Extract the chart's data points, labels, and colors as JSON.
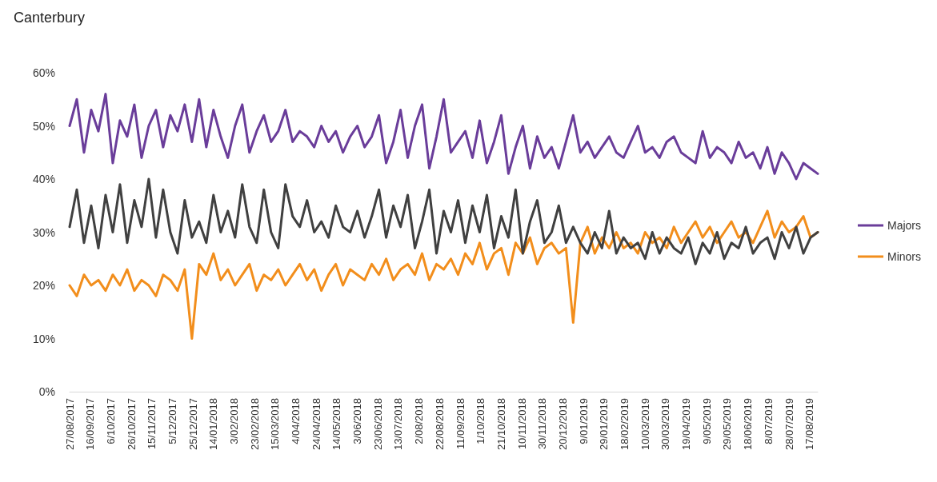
{
  "chart_data": {
    "type": "line",
    "title": "Canterbury",
    "legend": "right",
    "grid": false,
    "marker": "none",
    "line_style": "solid",
    "x": [
      "2017-08-27",
      "2017-09-03",
      "2017-09-10",
      "2017-09-17",
      "2017-09-24",
      "2017-10-01",
      "2017-10-08",
      "2017-10-15",
      "2017-10-22",
      "2017-10-29",
      "2017-11-05",
      "2017-11-12",
      "2017-11-19",
      "2017-11-26",
      "2017-12-03",
      "2017-12-10",
      "2017-12-17",
      "2017-12-24",
      "2017-12-31",
      "2018-01-07",
      "2018-01-14",
      "2018-01-21",
      "2018-01-28",
      "2018-02-04",
      "2018-02-11",
      "2018-02-18",
      "2018-02-25",
      "2018-03-04",
      "2018-03-11",
      "2018-03-18",
      "2018-03-25",
      "2018-04-01",
      "2018-04-08",
      "2018-04-15",
      "2018-04-22",
      "2018-04-29",
      "2018-05-06",
      "2018-05-13",
      "2018-05-20",
      "2018-05-27",
      "2018-06-03",
      "2018-06-10",
      "2018-06-17",
      "2018-06-24",
      "2018-07-01",
      "2018-07-08",
      "2018-07-15",
      "2018-07-22",
      "2018-07-29",
      "2018-08-05",
      "2018-08-12",
      "2018-08-19",
      "2018-08-26",
      "2018-09-02",
      "2018-09-09",
      "2018-09-16",
      "2018-09-23",
      "2018-09-30",
      "2018-10-07",
      "2018-10-14",
      "2018-10-21",
      "2018-10-28",
      "2018-11-04",
      "2018-11-11",
      "2018-11-18",
      "2018-11-25",
      "2018-12-02",
      "2018-12-09",
      "2018-12-16",
      "2018-12-23",
      "2018-12-30",
      "2019-01-06",
      "2019-01-13",
      "2019-01-20",
      "2019-01-27",
      "2019-02-03",
      "2019-02-10",
      "2019-02-17",
      "2019-02-24",
      "2019-03-03",
      "2019-03-10",
      "2019-03-17",
      "2019-03-24",
      "2019-03-31",
      "2019-04-07",
      "2019-04-14",
      "2019-04-21",
      "2019-04-28",
      "2019-05-05",
      "2019-05-12",
      "2019-05-19",
      "2019-05-26",
      "2019-06-02",
      "2019-06-09",
      "2019-06-16",
      "2019-06-23",
      "2019-06-30",
      "2019-07-07",
      "2019-07-14",
      "2019-07-21",
      "2019-07-28",
      "2019-08-04",
      "2019-08-11",
      "2019-08-18",
      "2019-08-25"
    ],
    "xlim": [
      "2017-08-27",
      "2019-08-25"
    ],
    "xticks": [
      {
        "value": "2017-08-27",
        "label": "27/08/2017"
      },
      {
        "value": "2017-09-16",
        "label": "16/09/2017"
      },
      {
        "value": "2017-10-06",
        "label": "6/10/2017"
      },
      {
        "value": "2017-10-26",
        "label": "26/10/2017"
      },
      {
        "value": "2017-11-15",
        "label": "15/11/2017"
      },
      {
        "value": "2017-12-05",
        "label": "5/12/2017"
      },
      {
        "value": "2017-12-25",
        "label": "25/12/2017"
      },
      {
        "value": "2018-01-14",
        "label": "14/01/2018"
      },
      {
        "value": "2018-02-03",
        "label": "3/02/2018"
      },
      {
        "value": "2018-02-23",
        "label": "23/02/2018"
      },
      {
        "value": "2018-03-15",
        "label": "15/03/2018"
      },
      {
        "value": "2018-04-04",
        "label": "4/04/2018"
      },
      {
        "value": "2018-04-24",
        "label": "24/04/2018"
      },
      {
        "value": "2018-05-14",
        "label": "14/05/2018"
      },
      {
        "value": "2018-06-03",
        "label": "3/06/2018"
      },
      {
        "value": "2018-06-23",
        "label": "23/06/2018"
      },
      {
        "value": "2018-07-13",
        "label": "13/07/2018"
      },
      {
        "value": "2018-08-02",
        "label": "2/08/2018"
      },
      {
        "value": "2018-08-22",
        "label": "22/08/2018"
      },
      {
        "value": "2018-09-11",
        "label": "11/09/2018"
      },
      {
        "value": "2018-10-01",
        "label": "1/10/2018"
      },
      {
        "value": "2018-10-21",
        "label": "21/10/2018"
      },
      {
        "value": "2018-11-10",
        "label": "10/11/2018"
      },
      {
        "value": "2018-11-30",
        "label": "30/11/2018"
      },
      {
        "value": "2018-12-20",
        "label": "20/12/2018"
      },
      {
        "value": "2019-01-09",
        "label": "9/01/2019"
      },
      {
        "value": "2019-01-29",
        "label": "29/01/2019"
      },
      {
        "value": "2019-02-18",
        "label": "18/02/2019"
      },
      {
        "value": "2019-03-10",
        "label": "10/03/2019"
      },
      {
        "value": "2019-03-30",
        "label": "30/03/2019"
      },
      {
        "value": "2019-04-19",
        "label": "19/04/2019"
      },
      {
        "value": "2019-05-09",
        "label": "9/05/2019"
      },
      {
        "value": "2019-05-29",
        "label": "29/05/2019"
      },
      {
        "value": "2019-06-18",
        "label": "18/06/2019"
      },
      {
        "value": "2019-07-08",
        "label": "8/07/2019"
      },
      {
        "value": "2019-07-28",
        "label": "28/07/2019"
      },
      {
        "value": "2019-08-17",
        "label": "17/08/2019"
      }
    ],
    "ylim": [
      0,
      60
    ],
    "yticks": [
      {
        "value": 0,
        "label": "0%"
      },
      {
        "value": 10,
        "label": "10%"
      },
      {
        "value": 20,
        "label": "20%"
      },
      {
        "value": 30,
        "label": "30%"
      },
      {
        "value": 40,
        "label": "40%"
      },
      {
        "value": 50,
        "label": "50%"
      },
      {
        "value": 60,
        "label": "60%"
      }
    ],
    "series": [
      {
        "name": "Majors",
        "color": "#6a3d9a",
        "values": [
          50,
          55,
          45,
          53,
          49,
          56,
          43,
          51,
          48,
          54,
          44,
          50,
          53,
          46,
          52,
          49,
          54,
          47,
          55,
          46,
          53,
          48,
          44,
          50,
          54,
          45,
          49,
          52,
          47,
          49,
          53,
          47,
          49,
          48,
          46,
          50,
          47,
          49,
          45,
          48,
          50,
          46,
          48,
          52,
          43,
          47,
          53,
          44,
          50,
          54,
          42,
          48,
          55,
          45,
          47,
          49,
          44,
          51,
          43,
          47,
          52,
          41,
          46,
          50,
          42,
          48,
          44,
          46,
          42,
          47,
          52,
          45,
          47,
          44,
          46,
          48,
          45,
          44,
          47,
          50,
          45,
          46,
          44,
          47,
          48,
          45,
          44,
          43,
          49,
          44,
          46,
          45,
          43,
          47,
          44,
          45,
          42,
          46,
          41,
          45,
          43,
          40,
          43,
          42,
          41
        ]
      },
      {
        "name": "Minors",
        "color": "#f28e1c",
        "values": [
          20,
          18,
          22,
          20,
          21,
          19,
          22,
          20,
          23,
          19,
          21,
          20,
          18,
          22,
          21,
          19,
          23,
          10,
          24,
          22,
          26,
          21,
          23,
          20,
          22,
          24,
          19,
          22,
          21,
          23,
          20,
          22,
          24,
          21,
          23,
          19,
          22,
          24,
          20,
          23,
          22,
          21,
          24,
          22,
          25,
          21,
          23,
          24,
          22,
          26,
          21,
          24,
          23,
          25,
          22,
          26,
          24,
          28,
          23,
          26,
          27,
          22,
          28,
          26,
          29,
          24,
          27,
          28,
          26,
          27,
          13,
          28,
          31,
          26,
          29,
          27,
          30,
          27,
          28,
          26,
          30,
          28,
          29,
          27,
          31,
          28,
          30,
          32,
          29,
          31,
          28,
          30,
          32,
          29,
          30,
          28,
          31,
          34,
          29,
          32,
          30,
          31,
          33,
          29,
          30
        ]
      },
      {
        "color": "#404040",
        "values": [
          31,
          38,
          28,
          35,
          27,
          37,
          30,
          39,
          28,
          36,
          31,
          40,
          29,
          38,
          30,
          26,
          36,
          29,
          32,
          28,
          37,
          30,
          34,
          29,
          39,
          31,
          28,
          38,
          30,
          27,
          39,
          33,
          31,
          36,
          30,
          32,
          29,
          35,
          31,
          30,
          34,
          29,
          33,
          38,
          29,
          35,
          31,
          37,
          27,
          32,
          38,
          26,
          34,
          30,
          36,
          28,
          35,
          30,
          37,
          27,
          33,
          29,
          38,
          26,
          32,
          36,
          28,
          30,
          35,
          28,
          31,
          28,
          26,
          30,
          27,
          34,
          26,
          29,
          27,
          28,
          25,
          30,
          26,
          29,
          27,
          26,
          29,
          24,
          28,
          26,
          30,
          25,
          28,
          27,
          31,
          26,
          28,
          29,
          25,
          30,
          27,
          31,
          26,
          29,
          30
        ]
      }
    ]
  }
}
